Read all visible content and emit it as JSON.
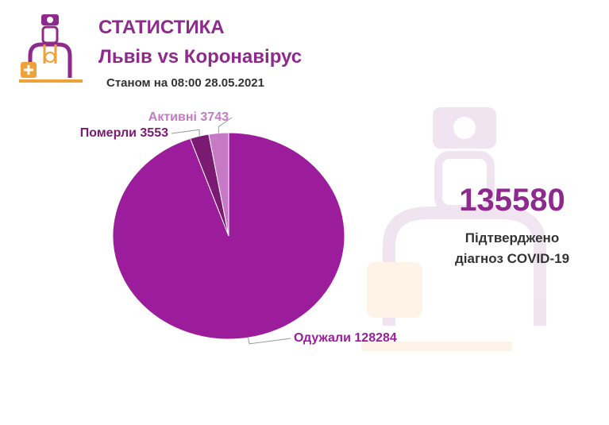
{
  "header": {
    "title": "СТАТИСТИКА",
    "subtitle": "Львів vs Коронавірус",
    "date": "Станом на 08:00 28.05.2021"
  },
  "summary": {
    "value": 135580,
    "caption": [
      "Підтверджено",
      "діагноз COVID-19"
    ]
  },
  "chart_data": {
    "type": "pie",
    "categories": [
      "Одужали",
      "Померли",
      "Активні"
    ],
    "values": [
      128284,
      3553,
      3743
    ],
    "colors": [
      "#9c1d9c",
      "#7b1a72",
      "#c67ac5"
    ]
  }
}
